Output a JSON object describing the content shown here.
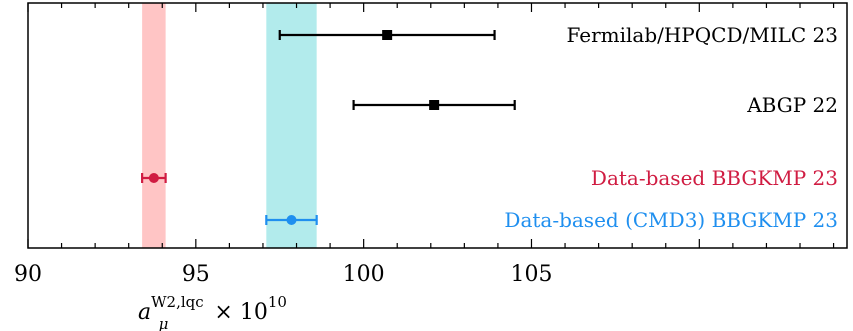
{
  "chart_data": {
    "type": "scatter",
    "xlim": [
      90,
      114.4
    ],
    "xticks": [
      90,
      95,
      100,
      105
    ],
    "xlabel": {
      "main": "a",
      "sub": "μ",
      "sup": "W2,lqc",
      "suffix": "× 10",
      "suffix_sup": "10"
    },
    "bands": [
      {
        "name": "Data-based BBGKMP 23",
        "center": 93.75,
        "half_width": 0.35,
        "color": "#ff9f9f"
      },
      {
        "name": "Data-based (CMD3) BBGKMP 23",
        "center": 97.85,
        "half_width": 0.75,
        "color": "#7fdde0"
      }
    ],
    "entries": [
      {
        "label": "Fermilab/HPQCD/MILC 23",
        "value": 100.7,
        "xmin": 97.5,
        "xmax": 103.9,
        "color": "#000000",
        "marker": "square",
        "row": 1
      },
      {
        "label": "ABGP 22",
        "value": 102.1,
        "xmin": 99.7,
        "xmax": 104.5,
        "color": "#000000",
        "marker": "square",
        "row": 2
      },
      {
        "label": "Data-based BBGKMP 23",
        "value": 93.75,
        "xmin": 93.4,
        "xmax": 94.1,
        "color": "#d01c42",
        "marker": "circle",
        "row": 3
      },
      {
        "label": "Data-based (CMD3) BBGKMP 23",
        "value": 97.85,
        "xmin": 97.1,
        "xmax": 98.6,
        "color": "#1f8fef",
        "marker": "circle",
        "row": 4
      }
    ]
  }
}
